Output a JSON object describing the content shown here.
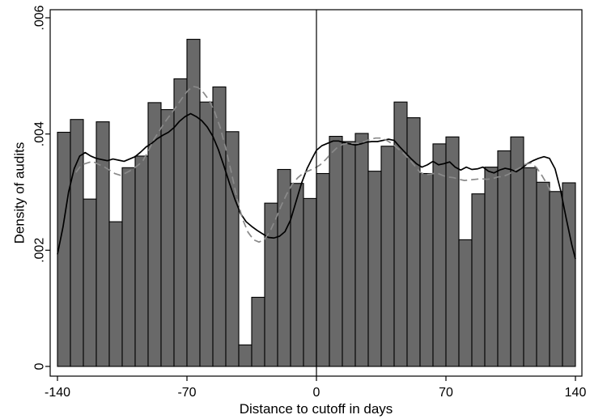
{
  "chart_data": {
    "type": "bar",
    "title": "",
    "xlabel": "Distance to cutoff in days",
    "ylabel": "Density of audits",
    "xlim": [
      -140,
      140
    ],
    "ylim": [
      0,
      0.006
    ],
    "xticks": [
      {
        "value": -140,
        "label": "-140"
      },
      {
        "value": -70,
        "label": "-70"
      },
      {
        "value": 0,
        "label": "0"
      },
      {
        "value": 70,
        "label": "70"
      },
      {
        "value": 140,
        "label": "140"
      }
    ],
    "yticks": [
      {
        "value": 0,
        "label": "0"
      },
      {
        "value": 0.002,
        "label": ".002"
      },
      {
        "value": 0.004,
        "label": ".004"
      },
      {
        "value": 0.006,
        "label": ".006"
      }
    ],
    "grid": false,
    "cutoff_line_x": 0,
    "bar_color": "#696969",
    "bins": [
      {
        "start": -140,
        "end": -133,
        "density": 0.00403
      },
      {
        "start": -133,
        "end": -126,
        "density": 0.00425
      },
      {
        "start": -126,
        "end": -119,
        "density": 0.00288
      },
      {
        "start": -119,
        "end": -112,
        "density": 0.00421
      },
      {
        "start": -112,
        "end": -105,
        "density": 0.00249
      },
      {
        "start": -105,
        "end": -98,
        "density": 0.00342
      },
      {
        "start": -98,
        "end": -91,
        "density": 0.00362
      },
      {
        "start": -91,
        "end": -84,
        "density": 0.00454
      },
      {
        "start": -84,
        "end": -77,
        "density": 0.00442
      },
      {
        "start": -77,
        "end": -70,
        "density": 0.00495
      },
      {
        "start": -70,
        "end": -63,
        "density": 0.00563
      },
      {
        "start": -63,
        "end": -56,
        "density": 0.00455
      },
      {
        "start": -56,
        "end": -49,
        "density": 0.00481
      },
      {
        "start": -49,
        "end": -42,
        "density": 0.00404
      },
      {
        "start": -42,
        "end": -35,
        "density": 0.00037
      },
      {
        "start": -35,
        "end": -28,
        "density": 0.00119
      },
      {
        "start": -28,
        "end": -21,
        "density": 0.00281
      },
      {
        "start": -21,
        "end": -14,
        "density": 0.00339
      },
      {
        "start": -14,
        "end": -7,
        "density": 0.00315
      },
      {
        "start": -7,
        "end": 0,
        "density": 0.00289
      },
      {
        "start": 0,
        "end": 7,
        "density": 0.00332
      },
      {
        "start": 7,
        "end": 14,
        "density": 0.00396
      },
      {
        "start": 14,
        "end": 21,
        "density": 0.00387
      },
      {
        "start": 21,
        "end": 28,
        "density": 0.00401
      },
      {
        "start": 28,
        "end": 35,
        "density": 0.00336
      },
      {
        "start": 35,
        "end": 42,
        "density": 0.00379
      },
      {
        "start": 42,
        "end": 49,
        "density": 0.00455
      },
      {
        "start": 49,
        "end": 56,
        "density": 0.00428
      },
      {
        "start": 56,
        "end": 63,
        "density": 0.00332
      },
      {
        "start": 63,
        "end": 70,
        "density": 0.00383
      },
      {
        "start": 70,
        "end": 77,
        "density": 0.00395
      },
      {
        "start": 77,
        "end": 84,
        "density": 0.00218
      },
      {
        "start": 84,
        "end": 91,
        "density": 0.00297
      },
      {
        "start": 91,
        "end": 98,
        "density": 0.00343
      },
      {
        "start": 98,
        "end": 105,
        "density": 0.00371
      },
      {
        "start": 105,
        "end": 112,
        "density": 0.00395
      },
      {
        "start": 112,
        "end": 119,
        "density": 0.00342
      },
      {
        "start": 119,
        "end": 126,
        "density": 0.00317
      },
      {
        "start": 126,
        "end": 133,
        "density": 0.00301
      },
      {
        "start": 133,
        "end": 140,
        "density": 0.00316
      }
    ],
    "series": [
      {
        "style": "solid",
        "color": "#000000",
        "points": [
          [
            -140,
            0.00193
          ],
          [
            -137,
            0.0024
          ],
          [
            -134,
            0.003
          ],
          [
            -131,
            0.0034
          ],
          [
            -128,
            0.00362
          ],
          [
            -125,
            0.00368
          ],
          [
            -122,
            0.00362
          ],
          [
            -119,
            0.00358
          ],
          [
            -116,
            0.00356
          ],
          [
            -113,
            0.00354
          ],
          [
            -110,
            0.00357
          ],
          [
            -107,
            0.00355
          ],
          [
            -104,
            0.00353
          ],
          [
            -101,
            0.00357
          ],
          [
            -98,
            0.00361
          ],
          [
            -95,
            0.00369
          ],
          [
            -92,
            0.00378
          ],
          [
            -89,
            0.00384
          ],
          [
            -86,
            0.00392
          ],
          [
            -83,
            0.00398
          ],
          [
            -80,
            0.00403
          ],
          [
            -77,
            0.00411
          ],
          [
            -74,
            0.00422
          ],
          [
            -71,
            0.0043
          ],
          [
            -68,
            0.00435
          ],
          [
            -65,
            0.0043
          ],
          [
            -62,
            0.00423
          ],
          [
            -59,
            0.00412
          ],
          [
            -56,
            0.00396
          ],
          [
            -53,
            0.00373
          ],
          [
            -50,
            0.00345
          ],
          [
            -47,
            0.00315
          ],
          [
            -44,
            0.00287
          ],
          [
            -41,
            0.00263
          ],
          [
            -38,
            0.00249
          ],
          [
            -35,
            0.00241
          ],
          [
            -32,
            0.00234
          ],
          [
            -29,
            0.00228
          ],
          [
            -26,
            0.00222
          ],
          [
            -23,
            0.00221
          ],
          [
            -20,
            0.00224
          ],
          [
            -17,
            0.00232
          ],
          [
            -14,
            0.00252
          ],
          [
            -11,
            0.00284
          ],
          [
            -8,
            0.00316
          ],
          [
            -5,
            0.00341
          ],
          [
            -2,
            0.0036
          ],
          [
            0,
            0.00372
          ],
          [
            3,
            0.0038
          ],
          [
            6,
            0.00384
          ],
          [
            9,
            0.00388
          ],
          [
            12,
            0.00388
          ],
          [
            15,
            0.00385
          ],
          [
            18,
            0.00383
          ],
          [
            21,
            0.00381
          ],
          [
            24,
            0.00383
          ],
          [
            27,
            0.00386
          ],
          [
            30,
            0.00387
          ],
          [
            33,
            0.00387
          ],
          [
            36,
            0.00389
          ],
          [
            39,
            0.00391
          ],
          [
            42,
            0.00389
          ],
          [
            45,
            0.00378
          ],
          [
            48,
            0.00368
          ],
          [
            51,
            0.00358
          ],
          [
            54,
            0.00349
          ],
          [
            57,
            0.00343
          ],
          [
            60,
            0.00347
          ],
          [
            63,
            0.00353
          ],
          [
            66,
            0.00347
          ],
          [
            69,
            0.00349
          ],
          [
            72,
            0.00352
          ],
          [
            75,
            0.00343
          ],
          [
            78,
            0.00338
          ],
          [
            81,
            0.00343
          ],
          [
            84,
            0.00339
          ],
          [
            87,
            0.0034
          ],
          [
            90,
            0.00343
          ],
          [
            93,
            0.00336
          ],
          [
            96,
            0.00333
          ],
          [
            99,
            0.00338
          ],
          [
            102,
            0.00341
          ],
          [
            105,
            0.00339
          ],
          [
            108,
            0.00335
          ],
          [
            111,
            0.00341
          ],
          [
            114,
            0.00349
          ],
          [
            117,
            0.00354
          ],
          [
            120,
            0.00358
          ],
          [
            123,
            0.00361
          ],
          [
            126,
            0.00358
          ],
          [
            129,
            0.0034
          ],
          [
            132,
            0.00303
          ],
          [
            135,
            0.00255
          ],
          [
            138,
            0.0021
          ],
          [
            140,
            0.00185
          ]
        ]
      },
      {
        "style": "dashed",
        "color": "#8a8a8a",
        "points": [
          [
            -130,
            0.00334
          ],
          [
            -127,
            0.00347
          ],
          [
            -124,
            0.0035
          ],
          [
            -121,
            0.00353
          ],
          [
            -118,
            0.00348
          ],
          [
            -115,
            0.00344
          ],
          [
            -112,
            0.00338
          ],
          [
            -109,
            0.00332
          ],
          [
            -106,
            0.00329
          ],
          [
            -103,
            0.00333
          ],
          [
            -100,
            0.00338
          ],
          [
            -97,
            0.00345
          ],
          [
            -94,
            0.00353
          ],
          [
            -91,
            0.0037
          ],
          [
            -88,
            0.0039
          ],
          [
            -85,
            0.00405
          ],
          [
            -82,
            0.0042
          ],
          [
            -79,
            0.00433
          ],
          [
            -76,
            0.00446
          ],
          [
            -73,
            0.0046
          ],
          [
            -70,
            0.00473
          ],
          [
            -67,
            0.00482
          ],
          [
            -64,
            0.0048
          ],
          [
            -61,
            0.00471
          ],
          [
            -58,
            0.00458
          ],
          [
            -55,
            0.00438
          ],
          [
            -52,
            0.00411
          ],
          [
            -49,
            0.00375
          ],
          [
            -46,
            0.00334
          ],
          [
            -43,
            0.0029
          ],
          [
            -40,
            0.00254
          ],
          [
            -37,
            0.00231
          ],
          [
            -34,
            0.00218
          ],
          [
            -31,
            0.00214
          ],
          [
            -28,
            0.00219
          ],
          [
            -25,
            0.00233
          ],
          [
            -22,
            0.00254
          ],
          [
            -19,
            0.00277
          ],
          [
            -16,
            0.00297
          ],
          [
            -13,
            0.00314
          ],
          [
            -10,
            0.00325
          ],
          [
            -7,
            0.00333
          ],
          [
            -4,
            0.00337
          ],
          [
            -1,
            0.00341
          ],
          [
            2,
            0.00347
          ],
          [
            5,
            0.00356
          ],
          [
            8,
            0.00367
          ],
          [
            11,
            0.00376
          ],
          [
            14,
            0.00382
          ],
          [
            17,
            0.00384
          ],
          [
            20,
            0.00384
          ],
          [
            23,
            0.00384
          ],
          [
            26,
            0.00387
          ],
          [
            29,
            0.00391
          ],
          [
            32,
            0.00393
          ],
          [
            35,
            0.00393
          ],
          [
            38,
            0.00389
          ],
          [
            41,
            0.00383
          ],
          [
            44,
            0.00375
          ],
          [
            47,
            0.00367
          ],
          [
            50,
            0.00357
          ],
          [
            53,
            0.00346
          ],
          [
            56,
            0.00334
          ],
          [
            59,
            0.0033
          ],
          [
            62,
            0.00331
          ],
          [
            65,
            0.00333
          ],
          [
            68,
            0.00329
          ],
          [
            71,
            0.00326
          ],
          [
            74,
            0.00325
          ],
          [
            77,
            0.00322
          ],
          [
            80,
            0.0032
          ],
          [
            83,
            0.00321
          ],
          [
            86,
            0.00322
          ],
          [
            89,
            0.00323
          ],
          [
            92,
            0.00322
          ],
          [
            95,
            0.00323
          ],
          [
            98,
            0.00326
          ],
          [
            101,
            0.00327
          ],
          [
            104,
            0.00331
          ],
          [
            107,
            0.00337
          ],
          [
            110,
            0.00342
          ],
          [
            113,
            0.00348
          ],
          [
            116,
            0.0035
          ],
          [
            119,
            0.00342
          ],
          [
            122,
            0.00328
          ],
          [
            125,
            0.00312
          ],
          [
            127,
            0.00297
          ]
        ]
      }
    ]
  }
}
